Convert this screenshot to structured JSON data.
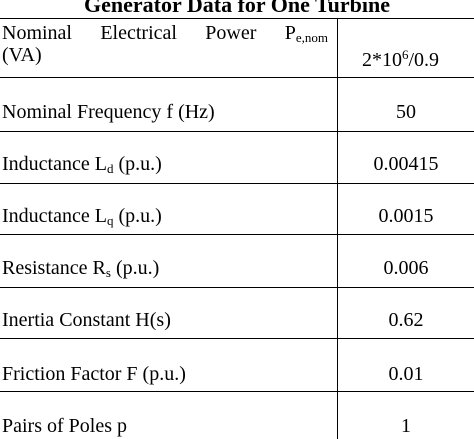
{
  "title": "Generator Data for One Turbine",
  "rows": [
    {
      "label_line1_words": [
        "Nominal",
        "Electrical",
        "Power"
      ],
      "label_line1_symbol": "P",
      "label_line1_subscript": "e,nom",
      "label_line2": "(VA)",
      "value_base": "2*10",
      "value_exponent": "6",
      "value_tail": "/0.9"
    },
    {
      "label_text": "Nominal Frequency f (Hz)",
      "value": "50"
    },
    {
      "label_prefix": "Inductance L",
      "label_subscript": "d",
      "label_suffix": " (p.u.)",
      "value": "0.00415"
    },
    {
      "label_prefix": "Inductance L",
      "label_subscript": "q",
      "label_suffix": " (p.u.)",
      "value": "0.0015"
    },
    {
      "label_prefix": "Resistance R",
      "label_subscript": "s",
      "label_suffix": " (p.u.)",
      "value": "0.006"
    },
    {
      "label_text": "Inertia Constant H(s)",
      "value": "0.62"
    },
    {
      "label_text": "Friction Factor F (p.u.)",
      "value": "0.01"
    },
    {
      "label_text": "Pairs of Poles p",
      "value": "1"
    }
  ]
}
